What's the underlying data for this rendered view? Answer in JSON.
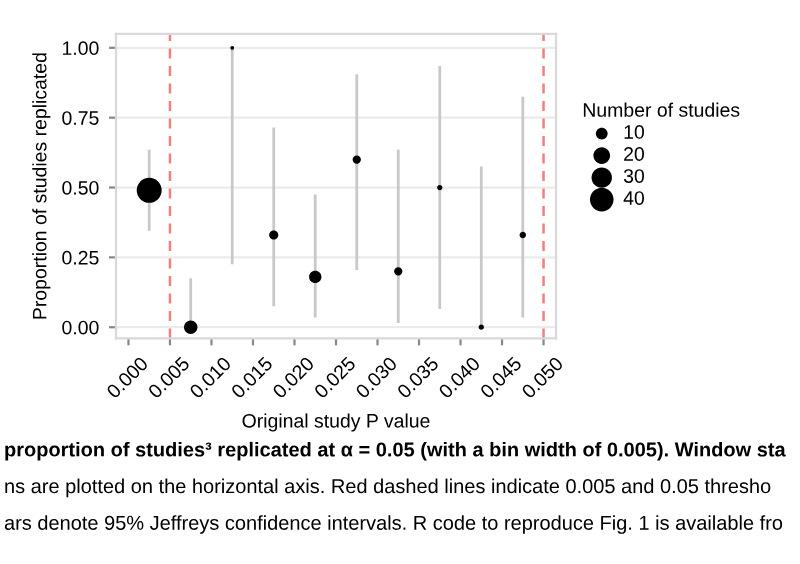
{
  "chart_data": {
    "type": "scatter",
    "xlabel": "Original study P value",
    "ylabel": "Proportion of studies replicated",
    "legend_title": "Number of studies",
    "x": [
      0.0025,
      0.0075,
      0.0125,
      0.0175,
      0.0225,
      0.0275,
      0.0325,
      0.0375,
      0.0425,
      0.0475
    ],
    "series": [
      {
        "color": "#000000",
        "values": [
          0.49,
          0.0,
          1.0,
          0.33,
          0.18,
          0.6,
          0.2,
          0.5,
          0.0,
          0.33
        ],
        "sizes": [
          45,
          13,
          1,
          6,
          11,
          5,
          5,
          2,
          2,
          3
        ],
        "errors": [
          [
            0.35,
            0.63
          ],
          [
            0.0,
            0.17
          ],
          [
            0.23,
            1.0
          ],
          [
            0.08,
            0.71
          ],
          [
            0.04,
            0.47
          ],
          [
            0.21,
            0.9
          ],
          [
            0.02,
            0.63
          ],
          [
            0.07,
            0.93
          ],
          [
            0.0,
            0.57
          ],
          [
            0.04,
            0.82
          ]
        ]
      }
    ],
    "size_legend": [
      10,
      20,
      30,
      40
    ],
    "xlim": [
      -0.0015,
      0.0515
    ],
    "xticks": [
      {
        "value": 0,
        "label": "0.000"
      },
      0.005,
      {
        "value": 0.01,
        "label": "0.010"
      },
      0.015,
      {
        "value": 0.02,
        "label": "0.020"
      },
      0.025,
      {
        "value": 0.03,
        "label": "0.030"
      },
      0.035,
      {
        "value": 0.04,
        "label": "0.040"
      },
      0.045,
      {
        "value": 0.05,
        "label": "0.050"
      }
    ],
    "ylim": [
      -0.04,
      1.05
    ],
    "yticks": [
      {
        "value": 0,
        "label": "0.00"
      },
      0.25,
      {
        "value": 0.5,
        "label": "0.50"
      },
      0.75,
      {
        "value": 1,
        "label": "1.00"
      }
    ],
    "ref_lines": [
      {
        "axis": "x",
        "value": 0.005,
        "color": "#f08080",
        "line_style": "dashed"
      },
      {
        "axis": "x",
        "value": 0.05,
        "color": "#f08080",
        "line_style": "dashed"
      }
    ],
    "grid": "y",
    "annotations": [
      "proportion of studies³ replicated at α = 0.05 (with a bin width of 0.005). Window sta",
      "ns are plotted on the horizontal axis. Red dashed lines indicate 0.005 and 0.05 thresho",
      "ars denote 95% Jeffreys confidence intervals. R code to reproduce Fig. 1 is available fro"
    ]
  }
}
